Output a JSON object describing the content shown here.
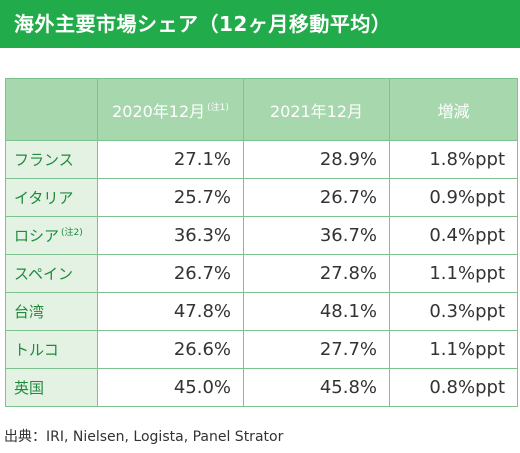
{
  "title": "海外主要市場シェア（12ヶ月移動平均）",
  "table": {
    "headers": {
      "col1": "2020年12月",
      "col1_note": "(注1)",
      "col2": "2021年12月",
      "col3": "増減"
    },
    "rows": [
      {
        "country": "フランス",
        "note": "",
        "v2020": "27.1%",
        "v2021": "28.9%",
        "change": "1.8%ppt"
      },
      {
        "country": "イタリア",
        "note": "",
        "v2020": "25.7%",
        "v2021": "26.7%",
        "change": "0.9%ppt"
      },
      {
        "country": "ロシア",
        "note": "(注2)",
        "v2020": "36.3%",
        "v2021": "36.7%",
        "change": "0.4%ppt"
      },
      {
        "country": "スペイン",
        "note": "",
        "v2020": "26.7%",
        "v2021": "27.8%",
        "change": "1.1%ppt"
      },
      {
        "country": "台湾",
        "note": "",
        "v2020": "47.8%",
        "v2021": "48.1%",
        "change": "0.3%ppt"
      },
      {
        "country": "トルコ",
        "note": "",
        "v2020": "26.6%",
        "v2021": "27.7%",
        "change": "1.1%ppt"
      },
      {
        "country": "英国",
        "note": "",
        "v2020": "45.0%",
        "v2021": "45.8%",
        "change": "0.8%ppt"
      }
    ]
  },
  "source": "出典：IRI, Nielsen, Logista, Panel Strator",
  "colors": {
    "title_bg": "#22ab4a",
    "header_bg": "#a7d7ad",
    "country_bg": "#e3f2e3",
    "country_text": "#1f8a3d",
    "border": "#7ec28f"
  }
}
